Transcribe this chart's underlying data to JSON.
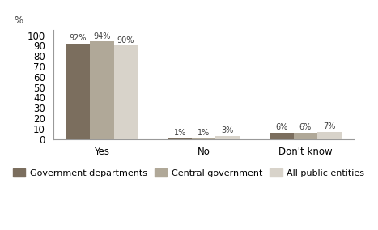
{
  "categories": [
    "Yes",
    "No",
    "Don't know"
  ],
  "series": [
    {
      "name": "Government departments",
      "values": [
        92,
        1,
        6
      ],
      "color": "#7B6E5E"
    },
    {
      "name": "Central government",
      "values": [
        94,
        1,
        6
      ],
      "color": "#B0A898"
    },
    {
      "name": "All public entities",
      "values": [
        90,
        3,
        7
      ],
      "color": "#D8D3CA"
    }
  ],
  "ylabel": "%",
  "ylim": [
    0,
    105
  ],
  "yticks": [
    0,
    10,
    20,
    30,
    40,
    50,
    60,
    70,
    80,
    90,
    100
  ],
  "bar_width": 0.27,
  "label_fontsize": 7.0,
  "axis_fontsize": 8.5,
  "legend_fontsize": 8.0,
  "background_color": "#FFFFFF",
  "text_color": "#404040",
  "ymax_label": "100"
}
